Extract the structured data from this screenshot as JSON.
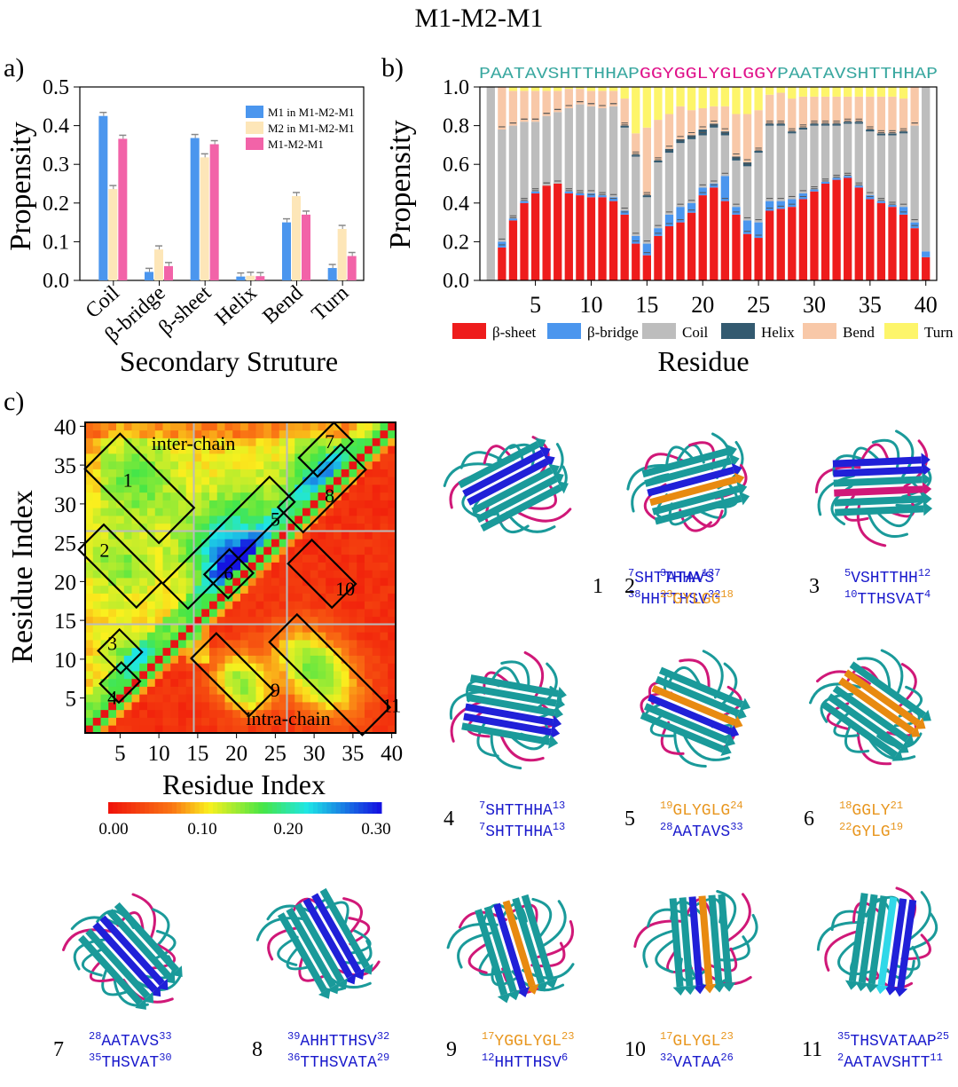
{
  "title": "M1-M2-M1",
  "panel_labels": {
    "a": "a)",
    "b": "b)",
    "c": "c)"
  },
  "chart_data": [
    {
      "id": "a",
      "type": "bar",
      "title": "",
      "xlabel": "Secondary Struture",
      "ylabel": "Propensity",
      "ylim": [
        0,
        0.5
      ],
      "yticks": [
        "0.0",
        "0.1",
        "0.2",
        "0.3",
        "0.4",
        "0.5"
      ],
      "categories": [
        "Coil",
        "β-bridge",
        "β-sheet",
        "Helix",
        "Bend",
        "Turn"
      ],
      "series": [
        {
          "name": "M1 in M1-M2-M1",
          "color": "#4b96ee",
          "values": [
            0.425,
            0.022,
            0.368,
            0.01,
            0.15,
            0.032
          ]
        },
        {
          "name": "M2 in M1-M2-M1",
          "color": "#fde6b8",
          "values": [
            0.236,
            0.08,
            0.318,
            0.012,
            0.218,
            0.133
          ]
        },
        {
          "name": "M1-M2-M1",
          "color": "#f263a8",
          "values": [
            0.366,
            0.037,
            0.352,
            0.011,
            0.17,
            0.063
          ]
        }
      ],
      "legend_position": "top-right"
    },
    {
      "id": "b",
      "type": "bar",
      "stacked": true,
      "xlabel": "Residue",
      "ylabel": "Propensity",
      "ylim": [
        0,
        1.0
      ],
      "yticks": [
        "0.0",
        "0.2",
        "0.4",
        "0.6",
        "0.8",
        "1.0"
      ],
      "xticks": [
        "5",
        "10",
        "15",
        "20",
        "25",
        "30",
        "35",
        "40"
      ],
      "sequence": [
        {
          "text": "PAATAVSHTTHHAP",
          "color": "#3aa8a0"
        },
        {
          "text": "GGYGGLYGLGGY",
          "color": "#e0128a"
        },
        {
          "text": "PAATAVSHTTHHAP",
          "color": "#3aa8a0"
        }
      ],
      "residues": 40,
      "beta_sheet": [
        0.0,
        0.17,
        0.31,
        0.4,
        0.45,
        0.49,
        0.5,
        0.45,
        0.44,
        0.43,
        0.43,
        0.41,
        0.34,
        0.19,
        0.13,
        0.23,
        0.28,
        0.3,
        0.35,
        0.44,
        0.48,
        0.41,
        0.34,
        0.24,
        0.22,
        0.36,
        0.37,
        0.38,
        0.42,
        0.46,
        0.5,
        0.52,
        0.53,
        0.48,
        0.42,
        0.4,
        0.38,
        0.34,
        0.27,
        0.12
      ],
      "beta_bridge": [
        0.0,
        0.03,
        0.01,
        0.01,
        0.01,
        0.0,
        0.0,
        0.01,
        0.01,
        0.02,
        0.01,
        0.02,
        0.02,
        0.04,
        0.06,
        0.04,
        0.06,
        0.08,
        0.05,
        0.04,
        0.02,
        0.13,
        0.04,
        0.07,
        0.08,
        0.05,
        0.04,
        0.04,
        0.03,
        0.01,
        0.01,
        0.01,
        0.01,
        0.01,
        0.02,
        0.01,
        0.01,
        0.04,
        0.03,
        0.03
      ],
      "coil": [
        1.0,
        0.58,
        0.48,
        0.41,
        0.36,
        0.36,
        0.37,
        0.43,
        0.46,
        0.45,
        0.45,
        0.47,
        0.43,
        0.41,
        0.24,
        0.34,
        0.32,
        0.33,
        0.33,
        0.27,
        0.29,
        0.21,
        0.24,
        0.28,
        0.36,
        0.39,
        0.39,
        0.34,
        0.33,
        0.33,
        0.29,
        0.27,
        0.27,
        0.32,
        0.33,
        0.34,
        0.36,
        0.38,
        0.5,
        0.85
      ],
      "helix": [
        0.0,
        0.0,
        0.0,
        0.0,
        0.0,
        0.0,
        0.0,
        0.0,
        0.0,
        0.0,
        0.0,
        0.0,
        0.01,
        0.01,
        0.01,
        0.01,
        0.02,
        0.02,
        0.02,
        0.03,
        0.02,
        0.02,
        0.02,
        0.02,
        0.01,
        0.01,
        0.01,
        0.01,
        0.01,
        0.01,
        0.01,
        0.01,
        0.01,
        0.01,
        0.01,
        0.01,
        0.01,
        0.01,
        0.0,
        0.0
      ],
      "bend": [
        0.0,
        0.22,
        0.18,
        0.16,
        0.16,
        0.13,
        0.11,
        0.1,
        0.08,
        0.08,
        0.09,
        0.08,
        0.14,
        0.11,
        0.35,
        0.21,
        0.18,
        0.17,
        0.13,
        0.11,
        0.09,
        0.13,
        0.22,
        0.25,
        0.21,
        0.15,
        0.16,
        0.17,
        0.16,
        0.14,
        0.14,
        0.14,
        0.13,
        0.13,
        0.17,
        0.19,
        0.19,
        0.17,
        0.2,
        0.0
      ],
      "turn": [
        0.0,
        0.0,
        0.02,
        0.02,
        0.02,
        0.02,
        0.02,
        0.01,
        0.01,
        0.02,
        0.02,
        0.02,
        0.06,
        0.24,
        0.21,
        0.17,
        0.14,
        0.1,
        0.12,
        0.11,
        0.1,
        0.1,
        0.14,
        0.14,
        0.12,
        0.04,
        0.03,
        0.06,
        0.05,
        0.05,
        0.05,
        0.05,
        0.05,
        0.05,
        0.05,
        0.05,
        0.05,
        0.06,
        0.0,
        0.0
      ],
      "legend": [
        {
          "name": "β-sheet",
          "color": "#ee1c1c"
        },
        {
          "name": "β-bridge",
          "color": "#4b96ee"
        },
        {
          "name": "Coil",
          "color": "#bdbdbd"
        },
        {
          "name": "Helix",
          "color": "#335a70"
        },
        {
          "name": "Bend",
          "color": "#f8c8a8"
        },
        {
          "name": "Turn",
          "color": "#fdf56a"
        }
      ]
    },
    {
      "id": "c",
      "type": "heatmap",
      "xlabel": "Residue Index",
      "ylabel": "Residue Index",
      "ticks": [
        "5",
        "10",
        "15",
        "20",
        "25",
        "30",
        "35",
        "40"
      ],
      "colorbar": {
        "min": "0.00",
        "mid1": "0.10",
        "mid2": "0.20",
        "max": "0.30",
        "range": [
          0,
          0.3
        ]
      },
      "region_labels": {
        "upper": "inter-chain",
        "lower": "intra-chain"
      },
      "boxes": [
        "1",
        "2",
        "3",
        "4",
        "5",
        "6",
        "7",
        "8",
        "9",
        "10",
        "11"
      ]
    }
  ],
  "structures": [
    {
      "num": "1",
      "lines": [
        {
          "color": "#1a1acc",
          "sup1": "7",
          "text": "SHTTHHA",
          "sup2": "13"
        },
        {
          "color": "#1a1acc",
          "sup1": "38",
          "text": "HHTTHSV",
          "sup2": "32"
        }
      ]
    },
    {
      "num": "2",
      "lines": [
        {
          "color": "#1a1acc",
          "sup1": "3",
          "text": "ATAVS",
          "sup2": "7"
        },
        {
          "color": "#e8961e",
          "sup1": "23",
          "text": "GYLGG",
          "sup2": "18"
        }
      ]
    },
    {
      "num": "3",
      "lines": [
        {
          "color": "#1a1acc",
          "sup1": "5",
          "text": "VSHTTHH",
          "sup2": "12"
        },
        {
          "color": "#1a1acc",
          "sup1": "10",
          "text": "TTHSVAT",
          "sup2": "4"
        }
      ]
    },
    {
      "num": "4",
      "lines": [
        {
          "color": "#1a1acc",
          "sup1": "7",
          "text": "SHTTHHA",
          "sup2": "13"
        },
        {
          "color": "#1a1acc",
          "sup1": "7",
          "text": "SHTTHHA",
          "sup2": "13"
        }
      ]
    },
    {
      "num": "5",
      "lines": [
        {
          "color": "#e8961e",
          "sup1": "19",
          "text": "GLYGLG",
          "sup2": "24"
        },
        {
          "color": "#1a1acc",
          "sup1": "28",
          "text": "AATAVS",
          "sup2": "33"
        }
      ]
    },
    {
      "num": "6",
      "lines": [
        {
          "color": "#e8961e",
          "sup1": "18",
          "text": "GGLY",
          "sup2": "21"
        },
        {
          "color": "#e8961e",
          "sup1": "22",
          "text": "GYLG",
          "sup2": "19"
        }
      ]
    },
    {
      "num": "7",
      "lines": [
        {
          "color": "#1a1acc",
          "sup1": "28",
          "text": "AATAVS",
          "sup2": "33"
        },
        {
          "color": "#1a1acc",
          "sup1": "35",
          "text": "THSVAT",
          "sup2": "30"
        }
      ]
    },
    {
      "num": "8",
      "lines": [
        {
          "color": "#1a1acc",
          "sup1": "39",
          "text": "AHHTTHSV",
          "sup2": "32"
        },
        {
          "color": "#1a1acc",
          "sup1": "36",
          "text": "TTHSVATA",
          "sup2": "29"
        }
      ]
    },
    {
      "num": "9",
      "lines": [
        {
          "color": "#e8961e",
          "sup1": "17",
          "text": "YGGLYGL",
          "sup2": "23"
        },
        {
          "color": "#1a1acc",
          "sup1": "12",
          "text": "HHTTHSV",
          "sup2": "6"
        }
      ]
    },
    {
      "num": "10",
      "lines": [
        {
          "color": "#e8961e",
          "sup1": "17",
          "text": "GLYGL",
          "sup2": "23"
        },
        {
          "color": "#1a1acc",
          "sup1": "32",
          "text": "VATAA",
          "sup2": "26"
        }
      ]
    },
    {
      "num": "11",
      "lines": [
        {
          "color": "#1a1acc",
          "sup1": "35",
          "text": "THSVATAAP",
          "sup2": "25"
        },
        {
          "color": "#1a1acc",
          "sup1": "2",
          "text": "AATAVSHTT",
          "sup2": "11"
        }
      ]
    }
  ],
  "colors": {
    "teal": "#1a9a9a",
    "magenta": "#d01878",
    "blue": "#2020d8",
    "orange": "#e88a10",
    "cyan": "#30d8e8"
  }
}
